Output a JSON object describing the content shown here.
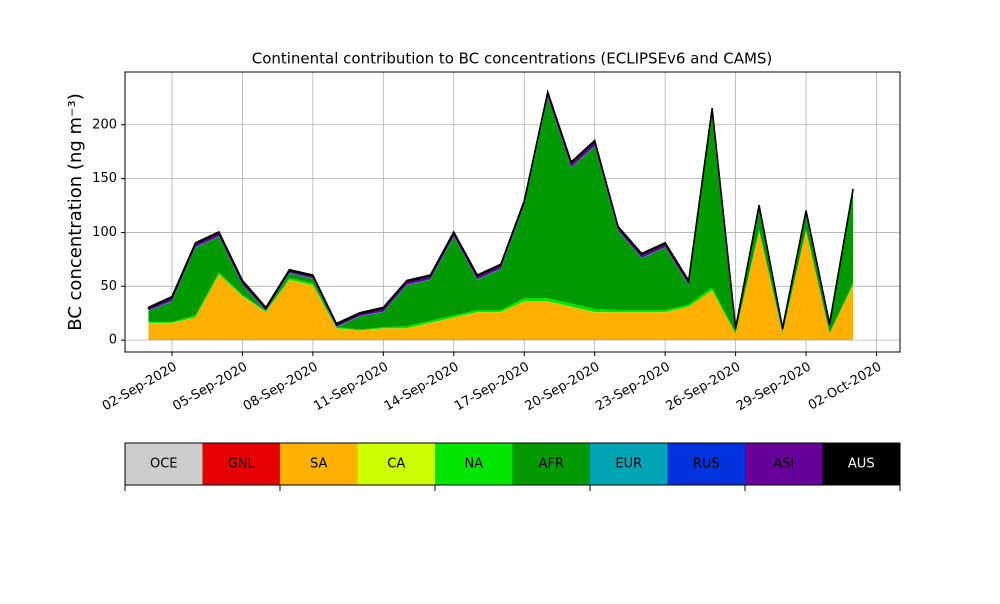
{
  "chart_data": {
    "type": "stacked_area",
    "title": "Continental contribution to BC concentrations (ECLIPSEv6 and CAMS)",
    "y_label": "BC concentration (ng m⁻³)",
    "x": [
      "01-Sep-2020",
      "02-Sep-2020",
      "03-Sep-2020",
      "04-Sep-2020",
      "05-Sep-2020",
      "06-Sep-2020",
      "07-Sep-2020",
      "08-Sep-2020",
      "09-Sep-2020",
      "10-Sep-2020",
      "11-Sep-2020",
      "12-Sep-2020",
      "13-Sep-2020",
      "14-Sep-2020",
      "15-Sep-2020",
      "16-Sep-2020",
      "17-Sep-2020",
      "18-Sep-2020",
      "19-Sep-2020",
      "20-Sep-2020",
      "21-Sep-2020",
      "22-Sep-2020",
      "23-Sep-2020",
      "24-Sep-2020",
      "25-Sep-2020",
      "26-Sep-2020",
      "27-Sep-2020",
      "28-Sep-2020",
      "29-Sep-2020",
      "30-Sep-2020",
      "01-Oct-2020"
    ],
    "series": [
      {
        "name": "OCE",
        "color": "#cccccc",
        "values": [
          0.5,
          0.5,
          0.5,
          0.5,
          0.5,
          0.5,
          0.5,
          0.5,
          0.5,
          0.5,
          0.5,
          0.5,
          0.5,
          0.5,
          0.5,
          0.5,
          0.5,
          0.5,
          0.5,
          0.5,
          0.5,
          0.5,
          0.5,
          0.5,
          0.5,
          0.5,
          0.5,
          0.5,
          0.5,
          0.5,
          0.5
        ]
      },
      {
        "name": "GNL",
        "color": "#e60000",
        "values": [
          0.3,
          0.3,
          0.3,
          0.3,
          0.3,
          0.3,
          0.3,
          0.3,
          0.3,
          0.3,
          0.3,
          0.3,
          0.3,
          0.3,
          0.3,
          0.3,
          0.3,
          0.3,
          0.3,
          0.3,
          0.3,
          0.3,
          0.3,
          0.3,
          0.3,
          0.3,
          0.3,
          0.3,
          0.3,
          0.3,
          0.3
        ]
      },
      {
        "name": "SA",
        "color": "#ffb000",
        "values": [
          15,
          15,
          20,
          60,
          40,
          25,
          55,
          50,
          10,
          8,
          10,
          10,
          15,
          20,
          25,
          25,
          35,
          35,
          30,
          25,
          25,
          25,
          25,
          30,
          45,
          5,
          100,
          5,
          100,
          5,
          50
        ]
      },
      {
        "name": "CA",
        "color": "#ccff00",
        "values": [
          0.2,
          0.2,
          0.2,
          0.2,
          0.2,
          0.2,
          0.2,
          0.2,
          0.2,
          0.2,
          0.2,
          0.2,
          0.2,
          0.2,
          0.2,
          0.2,
          0.2,
          0.2,
          0.2,
          0.2,
          0.2,
          0.2,
          0.2,
          0.2,
          0.2,
          0.2,
          0.2,
          0.2,
          0.2,
          0.2,
          0.2
        ]
      },
      {
        "name": "NA",
        "color": "#00e600",
        "values": [
          1,
          1,
          2,
          2,
          1,
          1,
          2,
          2,
          1,
          1,
          1,
          2,
          2,
          2,
          2,
          2,
          3,
          3,
          3,
          3,
          2,
          2,
          2,
          2,
          3,
          1,
          2,
          1,
          2,
          1,
          2
        ]
      },
      {
        "name": "AFR",
        "color": "#009900",
        "values": [
          10,
          19,
          63,
          33,
          9,
          0,
          4,
          4,
          0,
          12,
          14,
          38,
          38,
          73,
          28,
          38,
          86,
          186,
          126,
          151,
          73,
          48,
          58,
          18,
          162,
          1,
          18,
          1,
          13,
          4,
          83
        ]
      },
      {
        "name": "EUR",
        "color": "#00a5b5",
        "values": [
          0.2,
          0.2,
          0.2,
          0.2,
          0.2,
          0.2,
          0.2,
          0.2,
          0.2,
          0.2,
          0.2,
          0.2,
          0.2,
          0.2,
          0.2,
          0.2,
          0.2,
          0.2,
          0.2,
          0.2,
          0.2,
          0.2,
          0.2,
          0.2,
          0.2,
          0.2,
          0.2,
          0.2,
          0.2,
          0.2,
          0.2
        ]
      },
      {
        "name": "RUS",
        "color": "#0033dd",
        "values": [
          0.3,
          0.3,
          0.3,
          0.3,
          0.3,
          0.3,
          0.3,
          0.3,
          0.3,
          0.3,
          0.3,
          0.3,
          0.3,
          0.3,
          0.3,
          0.3,
          0.3,
          0.3,
          0.3,
          0.3,
          0.3,
          0.3,
          0.3,
          0.3,
          0.3,
          0.3,
          0.3,
          0.3,
          0.3,
          0.3,
          0.3
        ]
      },
      {
        "name": "ASI",
        "color": "#660099",
        "values": [
          2,
          3,
          3,
          3,
          3,
          2,
          2,
          2,
          2,
          2,
          3,
          3,
          3,
          3,
          3,
          3,
          3,
          4,
          4,
          4,
          3,
          3,
          3,
          3,
          3,
          2,
          3,
          2,
          3,
          3,
          3
        ]
      },
      {
        "name": "AUS",
        "color": "#000000",
        "values": [
          1,
          1,
          1,
          1,
          1,
          1,
          1,
          1,
          1,
          1,
          1,
          1,
          1,
          1,
          1,
          1,
          1,
          1,
          1,
          1,
          1,
          1,
          1,
          1,
          1,
          1,
          1,
          1,
          1,
          1,
          1
        ]
      }
    ],
    "xlim": [
      "31-Aug-2020",
      "03-Oct-2020"
    ],
    "xticks": [
      "02-Sep-2020",
      "05-Sep-2020",
      "08-Sep-2020",
      "11-Sep-2020",
      "14-Sep-2020",
      "17-Sep-2020",
      "20-Sep-2020",
      "23-Sep-2020",
      "26-Sep-2020",
      "29-Sep-2020",
      "02-Oct-2020"
    ],
    "ylim": [
      -11,
      249
    ],
    "yticks": [
      0,
      50,
      100,
      150,
      200
    ],
    "grid": true
  }
}
